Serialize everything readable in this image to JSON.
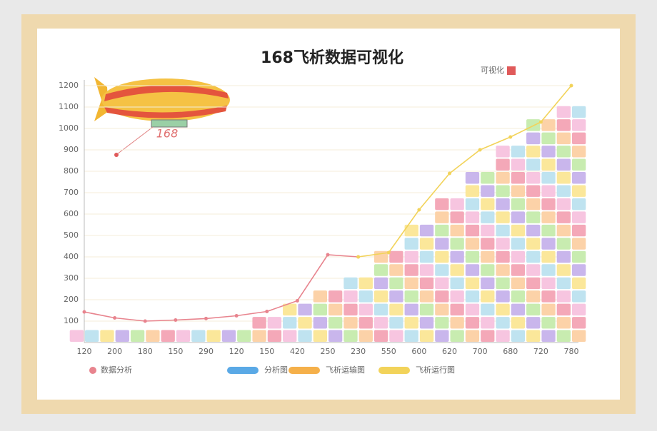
{
  "chart_data": {
    "type": "line",
    "title": "168飞析数据可视化",
    "airship_banner": "168",
    "categories": [
      "120",
      "200",
      "180",
      "150",
      "290",
      "120",
      "150",
      "420",
      "250",
      "230",
      "550",
      "600",
      "620",
      "700",
      "680",
      "720",
      "780"
    ],
    "series": [
      {
        "color": "#e8848e",
        "values": [
          143,
          115,
          100,
          105,
          112,
          125,
          145,
          195,
          410,
          400,
          null,
          null,
          null,
          null,
          null,
          null,
          null
        ]
      },
      {
        "color": "#f2d35a",
        "values": [
          null,
          null,
          null,
          null,
          null,
          null,
          null,
          null,
          null,
          400,
          420,
          620,
          790,
          900,
          960,
          1030,
          1200
        ]
      }
    ],
    "tiles": [
      1,
      1,
      1,
      1,
      1,
      1,
      2,
      3,
      4,
      5,
      7,
      9,
      11,
      13,
      15,
      17,
      18
    ],
    "tile_colors": [
      "#f7c5e0",
      "#bfe3f0",
      "#fbe79a",
      "#c9b6ec",
      "#c8ecb0",
      "#fcd2a8",
      "#f4a8b8"
    ],
    "ylim": [
      0,
      1200
    ],
    "yticks": [
      100,
      200,
      300,
      400,
      500,
      600,
      700,
      800,
      900,
      1000,
      1100,
      1200
    ],
    "grid": true,
    "legend_top": [
      {
        "label": "可视化",
        "color": "#e05a5a"
      }
    ],
    "legend_bottom": [
      {
        "label": "数据分析",
        "color": "#e8848e"
      },
      {
        "label": "分析图",
        "color": "#5aa9e6"
      },
      {
        "label": "飞析运输图",
        "color": "#f5b04a"
      },
      {
        "label": "飞析运行图",
        "color": "#f2d35a"
      }
    ]
  }
}
